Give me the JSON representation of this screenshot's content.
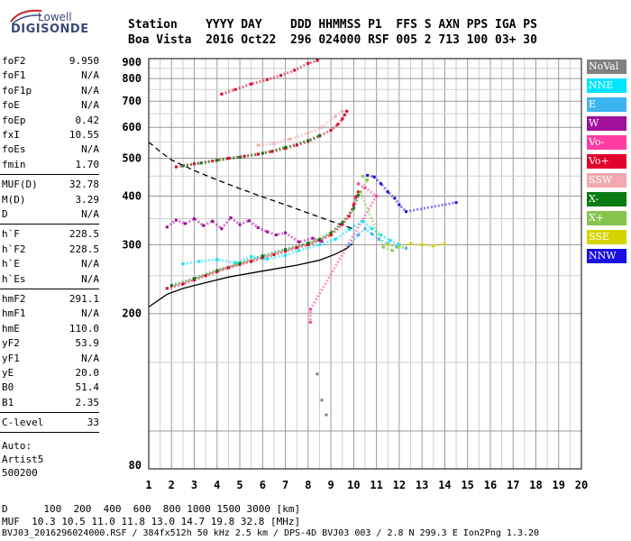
{
  "logo": {
    "line1": "Lowell",
    "line2": "DIGISONDE"
  },
  "header": {
    "row1": "Station    YYYY DAY    DDD HHMMSS P1  FFS S AXN PPS IGA PS",
    "row2": "Boa Vista  2016 Oct22  296 024000 RSF 005 2 713 100 03+ 30"
  },
  "params": {
    "group1": [
      {
        "label": "foF2",
        "value": "9.950"
      },
      {
        "label": "foF1",
        "value": "N/A"
      },
      {
        "label": "foF1p",
        "value": "N/A"
      },
      {
        "label": "foE",
        "value": "N/A"
      },
      {
        "label": "foEp",
        "value": "0.42"
      },
      {
        "label": "fxI",
        "value": "10.55"
      },
      {
        "label": "foEs",
        "value": "N/A"
      },
      {
        "label": "fmin",
        "value": "1.70"
      }
    ],
    "group2": [
      {
        "label": "MUF(D)",
        "value": "32.78"
      },
      {
        "label": "M(D)",
        "value": "3.29"
      },
      {
        "label": "D",
        "value": "N/A"
      }
    ],
    "group3": [
      {
        "label": "h`F",
        "value": "228.5"
      },
      {
        "label": "h`F2",
        "value": "228.5"
      },
      {
        "label": "h`E",
        "value": "N/A"
      },
      {
        "label": "h`Es",
        "value": "N/A"
      }
    ],
    "group4": [
      {
        "label": "hmF2",
        "value": "291.1"
      },
      {
        "label": "hmF1",
        "value": "N/A"
      },
      {
        "label": "hmE",
        "value": "110.0"
      },
      {
        "label": "yF2",
        "value": "53.9"
      },
      {
        "label": "yF1",
        "value": "N/A"
      },
      {
        "label": "yE",
        "value": "20.0"
      },
      {
        "label": "B0",
        "value": "51.4"
      },
      {
        "label": "B1",
        "value": "2.35"
      }
    ],
    "clevel": {
      "label": "C-level",
      "value": "33"
    },
    "auto": {
      "line1": "Auto:",
      "line2": "Artist5",
      "line3": "500200"
    }
  },
  "footer": {
    "d_row": "D      100  200  400  600  800 1000 1500 3000 [km]",
    "muf_row": "MUF  10.3 10.5 11.0 11.8 13.0 14.7 19.8 32.8 [MHz]",
    "file_row": "BVJ03_2016296024000.RSF / 384fx512h 50 kHz 2.5 km / DPS-4D BVJ03 003 / 2.8 N 299.3 E Ion2Png 1.3.20"
  },
  "legend": [
    {
      "label": "NoVal",
      "color": "#808080"
    },
    {
      "label": "NNE",
      "color": "#00e5ff"
    },
    {
      "label": "E",
      "color": "#3cb4f0"
    },
    {
      "label": "W",
      "color": "#a0109a"
    },
    {
      "label": "Vo-",
      "color": "#ff3ca0"
    },
    {
      "label": "Vo+",
      "color": "#e0002a"
    },
    {
      "label": "SSW",
      "color": "#f2a8ae"
    },
    {
      "label": "X-",
      "color": "#0a7a12"
    },
    {
      "label": "X+",
      "color": "#86c44e"
    },
    {
      "label": "SSE",
      "color": "#d4d400"
    },
    {
      "label": "NNW",
      "color": "#1a10e0"
    }
  ],
  "chart_data": {
    "type": "scatter",
    "xlim": [
      1,
      20
    ],
    "ylim": [
      80,
      900
    ],
    "y_scale": "log",
    "x_ticks": [
      1,
      2,
      3,
      4,
      5,
      6,
      7,
      8,
      9,
      10,
      11,
      12,
      13,
      14,
      15,
      16,
      17,
      18,
      19,
      20
    ],
    "y_ticks": [
      80,
      200,
      300,
      400,
      500,
      600,
      700,
      800,
      900
    ],
    "grid": true,
    "series": [
      {
        "name": "Vo+",
        "color": "#e0002a",
        "points": [
          [
            1.8,
            232
          ],
          [
            2.5,
            238
          ],
          [
            3,
            244
          ],
          [
            3.5,
            250
          ],
          [
            4,
            256
          ],
          [
            4.5,
            262
          ],
          [
            5,
            267
          ],
          [
            5.5,
            272
          ],
          [
            6,
            278
          ],
          [
            6.5,
            283
          ],
          [
            7,
            289
          ],
          [
            7.5,
            295
          ],
          [
            8,
            300
          ],
          [
            8.5,
            308
          ],
          [
            9,
            318
          ],
          [
            9.5,
            338
          ],
          [
            9.8,
            355
          ],
          [
            10,
            380
          ],
          [
            10.1,
            398
          ],
          [
            10.2,
            410
          ]
        ]
      },
      {
        "name": "X-",
        "color": "#0a7a12",
        "points": [
          [
            2,
            236
          ],
          [
            3,
            246
          ],
          [
            4,
            258
          ],
          [
            5,
            269
          ],
          [
            6,
            281
          ],
          [
            7,
            292
          ],
          [
            8,
            303
          ],
          [
            8.5,
            310
          ],
          [
            9,
            322
          ],
          [
            9.5,
            342
          ],
          [
            10,
            372
          ],
          [
            10.2,
            402
          ]
        ]
      },
      {
        "name": "W",
        "color": "#a0109a",
        "points": [
          [
            1.8,
            333
          ],
          [
            2.2,
            347
          ],
          [
            2.6,
            340
          ],
          [
            3,
            350
          ],
          [
            3.4,
            336
          ],
          [
            3.8,
            345
          ],
          [
            4.2,
            330
          ],
          [
            4.6,
            352
          ],
          [
            5,
            338
          ],
          [
            5.4,
            346
          ],
          [
            5.8,
            332
          ],
          [
            6.2,
            324
          ],
          [
            6.6,
            318
          ],
          [
            7,
            322
          ],
          [
            7.6,
            305
          ],
          [
            8.2,
            312
          ],
          [
            8.6,
            306
          ]
        ]
      },
      {
        "name": "NNE",
        "color": "#00e5ff",
        "points": [
          [
            2.5,
            268
          ],
          [
            3.2,
            272
          ],
          [
            4,
            275
          ],
          [
            4.8,
            270
          ],
          [
            5.5,
            280
          ],
          [
            6.2,
            276
          ],
          [
            7,
            282
          ],
          [
            7.6,
            290
          ],
          [
            8.5,
            300
          ],
          [
            9.2,
            310
          ],
          [
            9.8,
            328
          ],
          [
            10.4,
            345
          ],
          [
            10.8,
            330
          ],
          [
            11.2,
            318
          ],
          [
            11.6,
            308
          ],
          [
            12,
            300
          ]
        ]
      },
      {
        "name": "E",
        "color": "#3cb4f0",
        "points": [
          [
            9.8,
            300
          ],
          [
            10.2,
            318
          ],
          [
            10.5,
            330
          ],
          [
            10.8,
            320
          ],
          [
            11.1,
            310
          ],
          [
            11.5,
            302
          ],
          [
            11.9,
            296
          ],
          [
            12.3,
            294
          ]
        ]
      },
      {
        "name": "SSE",
        "color": "#d4d400",
        "points": [
          [
            11.5,
            300
          ],
          [
            12,
            296
          ],
          [
            12.5,
            302
          ],
          [
            13,
            300
          ],
          [
            13.5,
            298
          ],
          [
            14,
            302
          ]
        ]
      },
      {
        "name": "NNW",
        "color": "#1a10e0",
        "points": [
          [
            10.6,
            452
          ],
          [
            10.9,
            448
          ],
          [
            11.2,
            430
          ],
          [
            11.5,
            410
          ],
          [
            11.8,
            395
          ],
          [
            12,
            380
          ],
          [
            12.3,
            365
          ],
          [
            14.5,
            385
          ]
        ]
      },
      {
        "name": "Vo-",
        "color": "#ff3ca0",
        "points": [
          [
            10.2,
            430
          ],
          [
            10.5,
            420
          ],
          [
            11,
            400
          ],
          [
            8.1,
            205
          ],
          [
            8.1,
            190
          ]
        ]
      },
      {
        "name": "X+",
        "color": "#86c44e",
        "points": [
          [
            10.4,
            450
          ],
          [
            10.6,
            440
          ],
          [
            10.3,
            410
          ],
          [
            11.3,
            296
          ],
          [
            11.7,
            290
          ]
        ]
      },
      {
        "name": "SSW",
        "color": "#f2a8ae",
        "points": [
          [
            9.5,
            660
          ],
          [
            9.2,
            640
          ],
          [
            8.6,
            600
          ],
          [
            8,
            580
          ],
          [
            7.2,
            560
          ],
          [
            6.5,
            545
          ],
          [
            5.8,
            540
          ]
        ]
      },
      {
        "name": "NoVal",
        "color": "#808080",
        "points": [
          [
            8.6,
            120
          ],
          [
            8.4,
            140
          ],
          [
            8.8,
            110
          ]
        ]
      },
      {
        "name": "F2 second hop Vo+",
        "color": "#e0002a",
        "points": [
          [
            2.2,
            475
          ],
          [
            3,
            484
          ],
          [
            3.8,
            492
          ],
          [
            4.5,
            500
          ],
          [
            5.2,
            506
          ],
          [
            5.8,
            512
          ],
          [
            6.4,
            520
          ],
          [
            7,
            530
          ],
          [
            7.5,
            540
          ],
          [
            8,
            552
          ],
          [
            8.5,
            570
          ],
          [
            9,
            590
          ],
          [
            9.3,
            610
          ],
          [
            9.5,
            630
          ],
          [
            9.6,
            645
          ],
          [
            9.7,
            660
          ]
        ]
      },
      {
        "name": "F2 second hop X-",
        "color": "#0a7a12",
        "points": [
          [
            2.5,
            478
          ],
          [
            3.3,
            486
          ],
          [
            4,
            494
          ],
          [
            5,
            503
          ],
          [
            6,
            515
          ],
          [
            7,
            533
          ],
          [
            8,
            555
          ],
          [
            8.5,
            572
          ]
        ]
      },
      {
        "name": "F2 third hop Vo+",
        "color": "#e0002a",
        "points": [
          [
            4.2,
            730
          ],
          [
            4.8,
            750
          ],
          [
            5.5,
            775
          ],
          [
            6.2,
            795
          ],
          [
            6.8,
            815
          ],
          [
            7.4,
            840
          ],
          [
            8,
            875
          ],
          [
            8.4,
            890
          ]
        ]
      },
      {
        "name": "Profile",
        "color": "#000000",
        "points": [
          [
            1,
            208
          ],
          [
            1.8,
            224
          ],
          [
            2.5,
            232
          ],
          [
            3.5,
            240
          ],
          [
            4.5,
            248
          ],
          [
            5.5,
            254
          ],
          [
            6.5,
            260
          ],
          [
            7.5,
            266
          ],
          [
            8.5,
            274
          ],
          [
            9.2,
            284
          ],
          [
            9.7,
            294
          ],
          [
            9.95,
            302
          ]
        ]
      },
      {
        "name": "Profile dashed",
        "color": "#000000",
        "points": [
          [
            1,
            550
          ],
          [
            1.5,
            520
          ],
          [
            2,
            495
          ],
          [
            3,
            465
          ],
          [
            4,
            440
          ],
          [
            5,
            418
          ],
          [
            6,
            398
          ],
          [
            7,
            380
          ],
          [
            8,
            362
          ],
          [
            9,
            345
          ],
          [
            9.95,
            330
          ]
        ]
      }
    ]
  }
}
